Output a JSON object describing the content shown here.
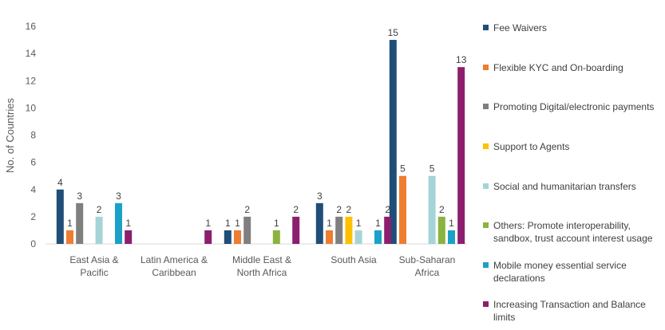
{
  "chart_data": {
    "type": "bar",
    "ylabel": "No. of Countries",
    "ylim": [
      0,
      16
    ],
    "yticks": [
      "0",
      "2",
      "4",
      "6",
      "8",
      "10",
      "12",
      "14",
      "16"
    ],
    "grid": false,
    "legend_position": "right",
    "categories": [
      [
        "East Asia &",
        "Pacific"
      ],
      [
        "Latin America &",
        "Caribbean"
      ],
      [
        "Middle East &",
        "North Africa"
      ],
      [
        "South Asia"
      ],
      [
        "Sub-Saharan",
        "Africa"
      ]
    ],
    "series": [
      {
        "name": "Fee Waivers",
        "color": "#1f4e79",
        "values": [
          4,
          null,
          1,
          3,
          15
        ]
      },
      {
        "name": "Flexible KYC and On-boarding",
        "color": "#ed7d31",
        "values": [
          1,
          null,
          1,
          1,
          5
        ]
      },
      {
        "name": "Promoting Digital/electronic payments",
        "color": "#7f7f7f",
        "values": [
          3,
          null,
          2,
          2,
          null
        ]
      },
      {
        "name": "Support to Agents",
        "color": "#ffc000",
        "values": [
          null,
          null,
          null,
          2,
          null
        ]
      },
      {
        "name": "Social and humanitarian transfers",
        "color": "#a5d4d8",
        "values": [
          2,
          null,
          null,
          1,
          5
        ]
      },
      {
        "name": "Others: Promote interoperability, sandbox, trust account interest usage",
        "color": "#8ab33f",
        "values": [
          null,
          null,
          1,
          null,
          2
        ]
      },
      {
        "name": "Mobile money essential service declarations",
        "color": "#1ba1c8",
        "values": [
          3,
          null,
          null,
          1,
          1
        ]
      },
      {
        "name": "Increasing Transaction and Balance limits",
        "color": "#8b1f6e",
        "values": [
          1,
          1,
          2,
          2,
          13
        ]
      }
    ]
  }
}
